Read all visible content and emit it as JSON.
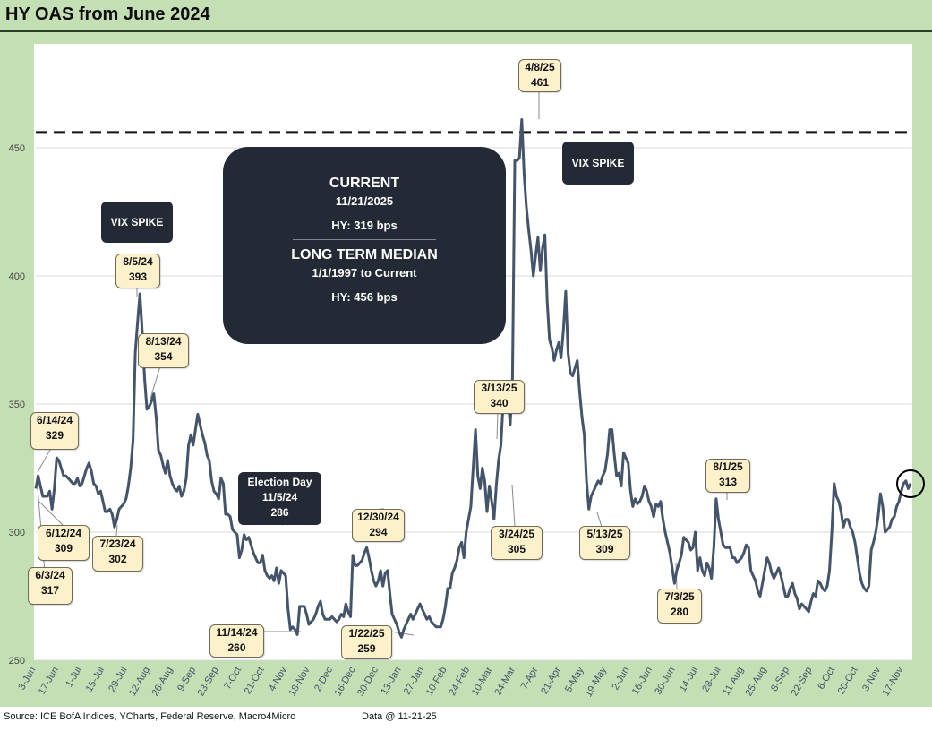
{
  "title": "HY OAS from June 2024",
  "footer": {
    "source": "Source: ICE BofA Indices, YCharts, Federal Reserve, Macro4Micro",
    "data_date": "Data @ 11-21-25"
  },
  "summary": {
    "current_label": "CURRENT",
    "current_date": "11/21/2025",
    "current_value": "HY:   319 bps",
    "median_label": "LONG TERM MEDIAN",
    "median_period": "1/1/1997 to Current",
    "median_value": "HY: 456 bps"
  },
  "colors": {
    "frame": "#c4dfb4",
    "line": "#44546a",
    "label_fill": "#fdf1cc",
    "dark_box": "#232a35"
  },
  "chart_data": {
    "type": "line",
    "series": [
      {
        "values_key": "y"
      }
    ],
    "y_ticks": [
      250,
      300,
      350,
      400,
      450
    ],
    "ylim": [
      250,
      475
    ],
    "x_ticks": [
      "3-Jun",
      "17-Jun",
      "1-Jul",
      "15-Jul",
      "29-Jul",
      "12-Aug",
      "26-Aug",
      "9-Sep",
      "23-Sep",
      "7-Oct",
      "21-Oct",
      "4-Nov",
      "18-Nov",
      "2-Dec",
      "16-Dec",
      "30-Dec",
      "13-Jan",
      "27-Jan",
      "10-Feb",
      "24-Feb",
      "10-Mar",
      "24-Mar",
      "7-Apr",
      "21-Apr",
      "5-May",
      "19-May",
      "2-Jun",
      "16-Jun",
      "30-Jun",
      "14-Jul",
      "28-Jul",
      "11-Aug",
      "25-Aug",
      "8-Sep",
      "22-Sep",
      "6-Oct",
      "20-Oct",
      "3-Nov",
      "17-Nov"
    ],
    "reference_line": {
      "value": 456,
      "style": "dashed"
    },
    "y": [
      317,
      322,
      318,
      314,
      314,
      314,
      316,
      309,
      317,
      329,
      328,
      325,
      322,
      322,
      321,
      320,
      319,
      319,
      321,
      318,
      319,
      322,
      325,
      327,
      324,
      319,
      318,
      315,
      316,
      312,
      308,
      308,
      309,
      307,
      302,
      305,
      309,
      310,
      311,
      313,
      318,
      325,
      336,
      370,
      382,
      393,
      378,
      360,
      348,
      349,
      351,
      354,
      345,
      332,
      330,
      326,
      323,
      328,
      322,
      319,
      317,
      316,
      318,
      314,
      316,
      321,
      334,
      338,
      334,
      340,
      346,
      342,
      338,
      335,
      330,
      328,
      320,
      316,
      315,
      313,
      321,
      319,
      307,
      307,
      306,
      301,
      300,
      299,
      290,
      293,
      299,
      297,
      298,
      295,
      292,
      290,
      288,
      288,
      291,
      285,
      283,
      282,
      283,
      281,
      286,
      280,
      285,
      284,
      283,
      270,
      262,
      263,
      262,
      260,
      271,
      271,
      271,
      268,
      264,
      265,
      266,
      268,
      271,
      273,
      268,
      266,
      266,
      266,
      267,
      266,
      265,
      266,
      268,
      267,
      272,
      269,
      267,
      291,
      287,
      287,
      288,
      289,
      292,
      294,
      290,
      285,
      281,
      279,
      281,
      285,
      279,
      284,
      285,
      276,
      268,
      266,
      264,
      261,
      259,
      262,
      264,
      266,
      268,
      266,
      268,
      270,
      272,
      270,
      268,
      266,
      267,
      265,
      264,
      263,
      263,
      263,
      266,
      271,
      278,
      278,
      284,
      286,
      289,
      294,
      296,
      290,
      300,
      305,
      310,
      325,
      340,
      322,
      317,
      325,
      320,
      308,
      318,
      312,
      305,
      318,
      328,
      334,
      351,
      355,
      352,
      342,
      360,
      445,
      445,
      446,
      461,
      440,
      427,
      418,
      410,
      400,
      408,
      415,
      402,
      411,
      416,
      390,
      375,
      372,
      367,
      371,
      374,
      368,
      379,
      394,
      370,
      362,
      361,
      364,
      367,
      355,
      345,
      338,
      320,
      309,
      314,
      316,
      318,
      320,
      319,
      322,
      324,
      330,
      340,
      340,
      330,
      322,
      323,
      318,
      331,
      329,
      327,
      316,
      310,
      313,
      311,
      312,
      314,
      318,
      316,
      312,
      310,
      306,
      311,
      310,
      312,
      305,
      300,
      296,
      292,
      286,
      280,
      285,
      288,
      291,
      298,
      297,
      296,
      293,
      294,
      300,
      285,
      290,
      285,
      283,
      288,
      286,
      282,
      294,
      313,
      305,
      300,
      295,
      294,
      294,
      294,
      290,
      290,
      288,
      289,
      290,
      292,
      295,
      294,
      285,
      283,
      281,
      277,
      275,
      280,
      285,
      290,
      288,
      284,
      282,
      284,
      286,
      283,
      279,
      275,
      275,
      278,
      280,
      276,
      274,
      270,
      272,
      271,
      270,
      269,
      273,
      276,
      275,
      281,
      280,
      278,
      277,
      279,
      285,
      300,
      319,
      314,
      312,
      308,
      302,
      305,
      305,
      302,
      300,
      296,
      290,
      284,
      280,
      278,
      277,
      279,
      293,
      296,
      300,
      306,
      315,
      310,
      300,
      301,
      302,
      305,
      306,
      310,
      312,
      316,
      319,
      320,
      317,
      319
    ]
  },
  "annotations": [
    {
      "date": "6/14/24",
      "value": "329"
    },
    {
      "date": "6/12/24",
      "value": "309"
    },
    {
      "date": "6/3/24",
      "value": "317"
    },
    {
      "date": "7/23/24",
      "value": "302"
    },
    {
      "date": "8/5/24",
      "value": "393"
    },
    {
      "date": "8/13/24",
      "value": "354"
    },
    {
      "date": "11/14/24",
      "value": "260"
    },
    {
      "date": "12/30/24",
      "value": "294"
    },
    {
      "date": "1/22/25",
      "value": "259"
    },
    {
      "date": "3/13/25",
      "value": "340"
    },
    {
      "date": "3/24/25",
      "value": "305"
    },
    {
      "date": "4/8/25",
      "value": "461"
    },
    {
      "date": "5/13/25",
      "value": "309"
    },
    {
      "date": "7/3/25",
      "value": "280"
    },
    {
      "date": "8/1/25",
      "value": "313"
    }
  ],
  "vix_spike_1": "VIX SPIKE",
  "vix_spike_2": "VIX SPIKE",
  "election": {
    "label": "Election Day",
    "date": "11/5/24",
    "value": "286"
  }
}
